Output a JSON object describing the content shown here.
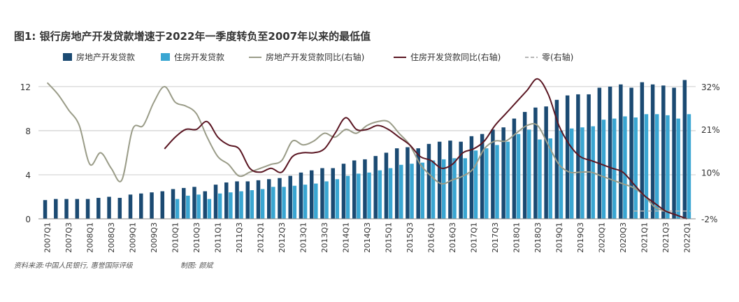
{
  "title": "图1: 银行房地产开发贷款增速于2022年一季度转负至2007年以来的最低值",
  "source": "资料来源:中国人民银行, 惠誉国际评级",
  "author": "制图: 颜斌",
  "colors": {
    "bar_re": "#1b4a72",
    "bar_housing": "#3aa6d2",
    "line_re": "#9a9c88",
    "line_housing": "#5a1622",
    "zero_line": "#b5b5b5",
    "grid": "#bdbdbd",
    "text": "#333333"
  },
  "chart_data": {
    "type": "bar",
    "title": "图1: 银行房地产开发贷款增速于2022年一季度转负至2007年以来的最低值",
    "categories": [
      "2007Q1",
      "2007Q2",
      "2007Q3",
      "2007Q4",
      "2008Q1",
      "2008Q2",
      "2008Q3",
      "2008Q4",
      "2009Q1",
      "2009Q2",
      "2009Q3",
      "2009Q4",
      "2010Q1",
      "2010Q2",
      "2010Q3",
      "2010Q4",
      "2011Q1",
      "2011Q2",
      "2011Q3",
      "2011Q4",
      "2012Q1",
      "2012Q2",
      "2012Q3",
      "2012Q4",
      "2013Q1",
      "2013Q2",
      "2013Q3",
      "2013Q4",
      "2014Q1",
      "2014Q2",
      "2014Q3",
      "2014Q4",
      "2015Q1",
      "2015Q2",
      "2015Q3",
      "2015Q4",
      "2016Q1",
      "2016Q2",
      "2016Q3",
      "2016Q4",
      "2017Q1",
      "2017Q2",
      "2017Q3",
      "2017Q4",
      "2018Q1",
      "2018Q2",
      "2018Q3",
      "2018Q4",
      "2019Q1",
      "2019Q2",
      "2019Q3",
      "2019Q4",
      "2020Q1",
      "2020Q2",
      "2020Q3",
      "2020Q4",
      "2021Q1",
      "2021Q2",
      "2021Q3",
      "2021Q4",
      "2022Q1"
    ],
    "x_tick_labels": [
      "2007Q1",
      "2007Q3",
      "2008Q1",
      "2008Q3",
      "2009Q1",
      "2009Q3",
      "2010Q1",
      "2010Q3",
      "2011Q1",
      "2011Q3",
      "2012Q1",
      "2012Q3",
      "2013Q1",
      "2013Q3",
      "2014Q1",
      "2014Q3",
      "2015Q1",
      "2015Q3",
      "2016Q1",
      "2016Q3",
      "2017Q1",
      "2017Q3",
      "2018Q1",
      "2018Q3",
      "2019Q1",
      "2019Q3",
      "2020Q1",
      "2020Q3",
      "2021Q1",
      "2021Q3",
      "2022Q1"
    ],
    "y_left": {
      "ticks": [
        0,
        4,
        8,
        12
      ],
      "range": [
        0,
        13.2
      ]
    },
    "y_right": {
      "ticks": [
        "-2%",
        "10%",
        "21%",
        "32%"
      ],
      "range": [
        -2,
        35.4
      ]
    },
    "legend": [
      "房地产开发贷款",
      "住房开发贷款",
      "房地产开发贷款同比(右轴)",
      "住房开发贷款同比(右轴)",
      "零(右轴)"
    ],
    "legend_position": "top",
    "grid": true,
    "series": [
      {
        "name": "房地产开发贷款",
        "axis": "left",
        "values": [
          1.7,
          1.8,
          1.8,
          1.8,
          1.8,
          1.9,
          2.0,
          1.9,
          2.2,
          2.3,
          2.4,
          2.5,
          2.7,
          2.8,
          2.9,
          2.5,
          3.1,
          3.3,
          3.4,
          3.4,
          3.5,
          3.6,
          3.7,
          3.9,
          4.2,
          4.4,
          4.6,
          4.6,
          5.0,
          5.3,
          5.4,
          5.7,
          6.0,
          6.4,
          6.5,
          6.4,
          6.8,
          7.0,
          7.1,
          7.0,
          7.5,
          7.7,
          8.1,
          8.3,
          9.1,
          9.7,
          10.1,
          10.2,
          10.8,
          11.2,
          11.3,
          11.3,
          11.9,
          12.0,
          12.2,
          11.9,
          12.4,
          12.2,
          12.1,
          11.9,
          12.6
        ]
      },
      {
        "name": "住房开发贷款",
        "axis": "left",
        "values": [
          null,
          null,
          null,
          null,
          null,
          null,
          null,
          null,
          null,
          null,
          null,
          null,
          1.8,
          2.1,
          2.2,
          1.8,
          2.3,
          2.4,
          2.5,
          2.6,
          2.7,
          2.9,
          2.9,
          3.0,
          3.1,
          3.2,
          3.4,
          3.6,
          3.9,
          4.1,
          4.2,
          4.4,
          4.6,
          4.9,
          5.0,
          5.1,
          5.3,
          5.4,
          5.5,
          5.5,
          6.2,
          6.4,
          6.7,
          7.0,
          7.7,
          8.1,
          7.2,
          7.3,
          8.0,
          8.2,
          8.3,
          8.4,
          9.0,
          9.1,
          9.3,
          9.2,
          9.5,
          9.5,
          9.4,
          9.1,
          9.5
        ]
      },
      {
        "name": "房地产开发贷款同比(右轴)",
        "axis": "right",
        "values": [
          33,
          30,
          26,
          22,
          12,
          15,
          11,
          8,
          21,
          22,
          28,
          32,
          28,
          27,
          25,
          19,
          14,
          12,
          9,
          10,
          11,
          12,
          13,
          18,
          17,
          18,
          20,
          19,
          21,
          20,
          22,
          23,
          23,
          20,
          17,
          12,
          9,
          7,
          8,
          9,
          11,
          16,
          18,
          18,
          20,
          22,
          22,
          17,
          12,
          10,
          10,
          10,
          9,
          8,
          7,
          6,
          4,
          1,
          0,
          -1,
          -2
        ]
      },
      {
        "name": "住房开发贷款同比(右轴)",
        "axis": "right",
        "values": [
          null,
          null,
          null,
          null,
          null,
          null,
          null,
          null,
          null,
          null,
          null,
          16,
          19,
          21,
          21,
          23,
          19,
          17,
          16,
          11,
          10,
          11,
          10,
          14,
          15,
          15,
          16,
          20,
          24,
          21,
          21,
          22,
          21,
          19,
          17,
          14,
          13,
          11,
          12,
          15,
          16,
          18,
          22,
          25,
          28,
          31,
          34,
          30,
          22,
          17,
          14,
          13,
          12,
          11,
          10,
          7,
          4,
          2,
          0,
          -1,
          -2
        ]
      },
      {
        "name": "零(右轴)",
        "axis": "right",
        "values": [
          0,
          0,
          0,
          0,
          0,
          0,
          0,
          0,
          0,
          0,
          0,
          0,
          0,
          0,
          0,
          0,
          0,
          0,
          0,
          0,
          0,
          0,
          0,
          0,
          0,
          0,
          0,
          0,
          0,
          0,
          0,
          0,
          0,
          0,
          0,
          0,
          0,
          0,
          0,
          0,
          0,
          0,
          0,
          0,
          0,
          0,
          0,
          0,
          0,
          0,
          0,
          0,
          0,
          0,
          0,
          0,
          0,
          0,
          0,
          0,
          0
        ]
      }
    ]
  }
}
